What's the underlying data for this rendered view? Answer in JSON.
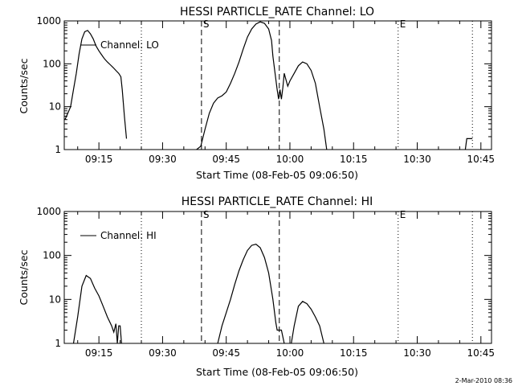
{
  "footer_timestamp": "2-Mar-2010 08:36",
  "chart_data": [
    {
      "type": "line",
      "title": "HESSI PARTICLE_RATE Channel: LO",
      "xlabel": "Start Time (08-Feb-05 09:06:50)",
      "ylabel": "Counts/sec",
      "y_scale": "log",
      "ylim": [
        1,
        1000
      ],
      "y_ticks": [
        "1",
        "10",
        "100",
        "1000"
      ],
      "xlim": [
        "09:06:50",
        "10:47:30"
      ],
      "x_ticks": [
        "09:15",
        "09:30",
        "09:45",
        "10:00",
        "10:15",
        "10:30",
        "10:45"
      ],
      "legend": {
        "position": "top-left",
        "entries": [
          "Channel: LO"
        ]
      },
      "grid": false,
      "markers": [
        {
          "time": "09:39:10",
          "style": "dashed",
          "label": "S"
        },
        {
          "time": "09:57:30",
          "style": "dashed",
          "label": ""
        },
        {
          "time": "09:25:00",
          "style": "dotted",
          "label": ""
        },
        {
          "time": "10:25:30",
          "style": "dotted",
          "label": "E"
        },
        {
          "time": "10:43:00",
          "style": "dotted",
          "label": ""
        }
      ],
      "series": [
        {
          "name": "Channel: LO",
          "segments": [
            [
              [
                "09:07:00",
                5
              ],
              [
                "09:07:40",
                7
              ],
              [
                "09:08:20",
                10
              ],
              [
                "09:09:00",
                25
              ],
              [
                "09:09:40",
                60
              ],
              [
                "09:10:20",
                170
              ],
              [
                "09:11:00",
                380
              ],
              [
                "09:11:40",
                560
              ],
              [
                "09:12:20",
                600
              ],
              [
                "09:13:00",
                500
              ],
              [
                "09:13:40",
                380
              ],
              [
                "09:14:20",
                260
              ],
              [
                "09:15:00",
                200
              ],
              [
                "09:15:40",
                160
              ],
              [
                "09:16:20",
                130
              ],
              [
                "09:17:00",
                110
              ],
              [
                "09:17:40",
                95
              ],
              [
                "09:18:20",
                82
              ],
              [
                "09:19:00",
                70
              ],
              [
                "09:19:40",
                60
              ],
              [
                "09:20:10",
                50
              ],
              [
                "09:20:30",
                25
              ],
              [
                "09:21:00",
                6
              ],
              [
                "09:21:30",
                1.8
              ]
            ],
            [
              [
                "09:38:00",
                1
              ],
              [
                "09:39:00",
                1.2
              ],
              [
                "09:40:00",
                3
              ],
              [
                "09:41:00",
                7
              ],
              [
                "09:42:00",
                12
              ],
              [
                "09:43:00",
                16
              ],
              [
                "09:44:00",
                18
              ],
              [
                "09:45:00",
                22
              ],
              [
                "09:46:00",
                35
              ],
              [
                "09:47:00",
                60
              ],
              [
                "09:48:00",
                110
              ],
              [
                "09:49:00",
                220
              ],
              [
                "09:50:00",
                420
              ],
              [
                "09:51:00",
                650
              ],
              [
                "09:52:00",
                850
              ],
              [
                "09:53:00",
                950
              ],
              [
                "09:54:00",
                880
              ],
              [
                "09:55:00",
                650
              ],
              [
                "09:55:40",
                350
              ],
              [
                "09:56:00",
                150
              ],
              [
                "09:56:30",
                60
              ],
              [
                "09:57:00",
                25
              ],
              [
                "09:57:20",
                15
              ],
              [
                "09:57:40",
                25
              ],
              [
                "09:58:00",
                15
              ],
              [
                "09:58:20",
                28
              ],
              [
                "09:58:40",
                60
              ],
              [
                "09:59:00",
                45
              ],
              [
                "09:59:30",
                30
              ],
              [
                "10:00:00",
                40
              ],
              [
                "10:01:00",
                60
              ],
              [
                "10:02:00",
                90
              ],
              [
                "10:03:00",
                110
              ],
              [
                "10:04:00",
                100
              ],
              [
                "10:05:00",
                70
              ],
              [
                "10:06:00",
                35
              ],
              [
                "10:07:00",
                10
              ],
              [
                "10:08:00",
                3
              ],
              [
                "10:08:40",
                1
              ]
            ],
            [
              [
                "10:41:20",
                1
              ],
              [
                "10:41:40",
                1.8
              ],
              [
                "10:43:00",
                1.8
              ]
            ]
          ]
        }
      ]
    },
    {
      "type": "line",
      "title": "HESSI PARTICLE_RATE Channel: HI",
      "xlabel": "Start Time (08-Feb-05 09:06:50)",
      "ylabel": "Counts/sec",
      "y_scale": "log",
      "ylim": [
        1,
        1000
      ],
      "y_ticks": [
        "1",
        "10",
        "100",
        "1000"
      ],
      "xlim": [
        "09:06:50",
        "10:47:30"
      ],
      "x_ticks": [
        "09:15",
        "09:30",
        "09:45",
        "10:00",
        "10:15",
        "10:30",
        "10:45"
      ],
      "legend": {
        "position": "top-left",
        "entries": [
          "Channel: HI"
        ]
      },
      "grid": false,
      "markers": [
        {
          "time": "09:39:10",
          "style": "dashed",
          "label": "S"
        },
        {
          "time": "09:57:30",
          "style": "dashed",
          "label": ""
        },
        {
          "time": "09:25:00",
          "style": "dotted",
          "label": ""
        },
        {
          "time": "10:25:30",
          "style": "dotted",
          "label": "E"
        },
        {
          "time": "10:43:00",
          "style": "dotted",
          "label": ""
        }
      ],
      "series": [
        {
          "name": "Channel: HI",
          "segments": [
            [
              [
                "09:09:00",
                1
              ],
              [
                "09:10:00",
                4
              ],
              [
                "09:11:00",
                20
              ],
              [
                "09:12:00",
                35
              ],
              [
                "09:13:00",
                30
              ],
              [
                "09:14:00",
                18
              ],
              [
                "09:15:00",
                12
              ],
              [
                "09:16:00",
                7
              ],
              [
                "09:17:00",
                4
              ],
              [
                "09:18:00",
                2.5
              ],
              [
                "09:18:30",
                1.8
              ],
              [
                "09:19:00",
                2.8
              ],
              [
                "09:19:20",
                1
              ],
              [
                "09:19:40",
                2.5
              ],
              [
                "09:20:00",
                2.5
              ],
              [
                "09:20:20",
                1
              ]
            ],
            [
              [
                "09:43:00",
                1
              ],
              [
                "09:44:00",
                2.5
              ],
              [
                "09:45:00",
                5
              ],
              [
                "09:46:00",
                10
              ],
              [
                "09:47:00",
                22
              ],
              [
                "09:48:00",
                45
              ],
              [
                "09:49:00",
                80
              ],
              [
                "09:50:00",
                130
              ],
              [
                "09:51:00",
                170
              ],
              [
                "09:52:00",
                180
              ],
              [
                "09:53:00",
                150
              ],
              [
                "09:54:00",
                90
              ],
              [
                "09:55:00",
                40
              ],
              [
                "09:56:00",
                10
              ],
              [
                "09:56:40",
                3
              ],
              [
                "09:57:00",
                2
              ],
              [
                "09:58:00",
                2
              ],
              [
                "09:58:40",
                1
              ]
            ],
            [
              [
                "10:00:20",
                1
              ],
              [
                "10:01:00",
                2.5
              ],
              [
                "10:02:00",
                7
              ],
              [
                "10:03:00",
                9
              ],
              [
                "10:04:00",
                8
              ],
              [
                "10:05:00",
                6
              ],
              [
                "10:06:00",
                4
              ],
              [
                "10:07:00",
                2.5
              ],
              [
                "10:08:00",
                1
              ]
            ]
          ]
        }
      ]
    }
  ]
}
